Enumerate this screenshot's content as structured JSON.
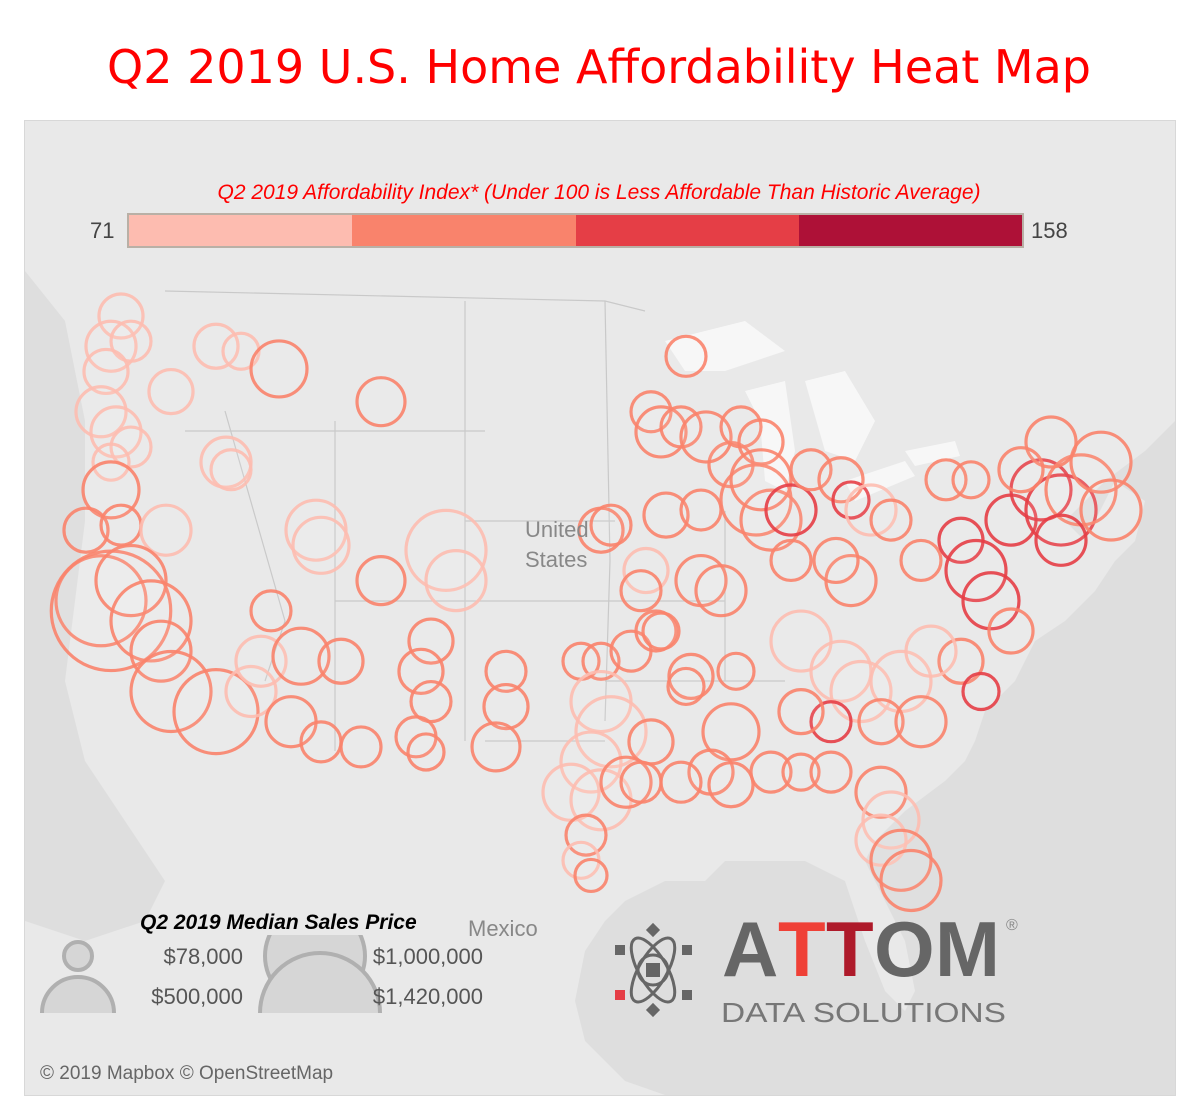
{
  "title": "Q2 2019 U.S. Home Affordability Heat Map",
  "color_legend": {
    "title": "Q2 2019 Affordability Index* (Under 100 is Less Affordable Than Historic Average)",
    "min_label": "71",
    "max_label": "158",
    "colors": [
      "#fdbcb0",
      "#f9836c",
      "#e53e46",
      "#ae1137"
    ]
  },
  "size_legend": {
    "title": "Q2 2019 Median Sales Price",
    "items": [
      {
        "label": "$78,000",
        "price": 78000
      },
      {
        "label": "$1,000,000",
        "price": 1000000
      },
      {
        "label": "$500,000",
        "price": 500000
      },
      {
        "label": "$1,420,000",
        "price": 1420000
      }
    ],
    "circle_color": "#b0b0b0"
  },
  "map_labels": {
    "country": "United States",
    "country_line1": "United",
    "country_line2": "States",
    "mexico": "Mexico"
  },
  "credit": "© 2019 Mapbox © OpenStreetMap",
  "logo": {
    "name": "ATTOM",
    "tagline": "DATA SOLUTIONS",
    "registered": "®"
  },
  "chart_data": {
    "type": "scatter",
    "marker_fields": [
      "lon",
      "lat",
      "median_price",
      "affordability_tier"
    ],
    "markers": [
      [
        -120.4,
        48.2,
        193000,
        1
      ],
      [
        -120.9,
        47.0,
        249000,
        1
      ],
      [
        -119.9,
        47.2,
        159000,
        1
      ],
      [
        -121.15,
        46.0,
        193000,
        1
      ],
      [
        -121.4,
        44.4,
        249000,
        1
      ],
      [
        -120.65,
        43.6,
        249000,
        1
      ],
      [
        -119.9,
        43.0,
        159000,
        1
      ],
      [
        -120.9,
        42.4,
        129000,
        1
      ],
      [
        -120.9,
        41.3,
        312000,
        2
      ],
      [
        -117.9,
        45.2,
        193000,
        1
      ],
      [
        -115.65,
        47.0,
        193000,
        1
      ],
      [
        -114.4,
        46.8,
        129000,
        1
      ],
      [
        -112.5,
        46.1,
        312000,
        2
      ],
      [
        -107.4,
        44.8,
        229000,
        2
      ],
      [
        -115.15,
        42.4,
        249000,
        1
      ],
      [
        -114.9,
        42.1,
        159000,
        1
      ],
      [
        -122.15,
        39.7,
        193000,
        2
      ],
      [
        -120.4,
        39.9,
        159000,
        2
      ],
      [
        -118.15,
        39.7,
        249000,
        1
      ],
      [
        -121.4,
        36.9,
        806000,
        2
      ],
      [
        -120.9,
        36.5,
        1420000,
        2
      ],
      [
        -119.9,
        37.7,
        488000,
        2
      ],
      [
        -118.9,
        36.1,
        637000,
        2
      ],
      [
        -118.4,
        34.9,
        358000,
        2
      ],
      [
        -117.9,
        33.3,
        637000,
        2
      ],
      [
        -115.65,
        32.5,
        702000,
        2
      ],
      [
        -113.9,
        33.3,
        249000,
        1
      ],
      [
        -113.4,
        34.5,
        249000,
        1
      ],
      [
        -111.4,
        34.7,
        312000,
        2
      ],
      [
        -109.4,
        34.5,
        193000,
        2
      ],
      [
        -111.9,
        32.1,
        249000,
        2
      ],
      [
        -110.4,
        31.3,
        159000,
        2
      ],
      [
        -108.4,
        31.1,
        159000,
        2
      ],
      [
        -112.9,
        36.5,
        159000,
        2
      ],
      [
        -110.65,
        39.7,
        358000,
        1
      ],
      [
        -110.4,
        39.1,
        312000,
        1
      ],
      [
        -107.4,
        37.7,
        229000,
        2
      ],
      [
        -104.15,
        38.9,
        637000,
        1
      ],
      [
        -103.65,
        37.7,
        358000,
        1
      ],
      [
        -104.9,
        35.3,
        193000,
        2
      ],
      [
        -105.4,
        34.1,
        193000,
        2
      ],
      [
        -104.9,
        32.9,
        159000,
        2
      ],
      [
        -105.65,
        31.5,
        159000,
        2
      ],
      [
        -105.15,
        30.9,
        129000,
        2
      ],
      [
        -101.15,
        34.1,
        159000,
        2
      ],
      [
        -101.15,
        32.7,
        193000,
        2
      ],
      [
        -101.65,
        31.1,
        229000,
        2
      ],
      [
        -97.4,
        34.5,
        129000,
        2
      ],
      [
        -96.4,
        34.5,
        129000,
        2
      ],
      [
        -94.9,
        34.9,
        159000,
        2
      ],
      [
        -93.65,
        35.7,
        159000,
        2
      ],
      [
        -96.4,
        32.9,
        358000,
        1
      ],
      [
        -95.9,
        31.7,
        488000,
        1
      ],
      [
        -96.9,
        30.5,
        358000,
        1
      ],
      [
        -97.9,
        29.3,
        312000,
        1
      ],
      [
        -96.4,
        29.0,
        358000,
        1
      ],
      [
        -95.15,
        29.7,
        249000,
        2
      ],
      [
        -93.9,
        31.3,
        193000,
        2
      ],
      [
        -97.15,
        27.6,
        159000,
        2
      ],
      [
        -97.4,
        26.6,
        129000,
        1
      ],
      [
        -96.9,
        26.0,
        102000,
        2
      ],
      [
        -96.4,
        39.7,
        193000,
        2
      ],
      [
        -95.9,
        39.9,
        159000,
        2
      ],
      [
        -94.15,
        38.1,
        193000,
        1
      ],
      [
        -94.4,
        37.3,
        159000,
        2
      ],
      [
        -93.15,
        40.3,
        193000,
        2
      ],
      [
        -91.4,
        40.5,
        159000,
        2
      ],
      [
        -89.9,
        42.3,
        193000,
        2
      ],
      [
        -91.4,
        37.7,
        249000,
        2
      ],
      [
        -90.4,
        37.3,
        249000,
        2
      ],
      [
        -93.4,
        35.7,
        129000,
        2
      ],
      [
        -91.9,
        33.9,
        193000,
        2
      ],
      [
        -92.15,
        33.5,
        129000,
        2
      ],
      [
        -89.9,
        31.7,
        312000,
        2
      ],
      [
        -89.65,
        34.1,
        129000,
        2
      ],
      [
        -92.15,
        46.6,
        159000,
        2
      ],
      [
        -93.9,
        44.4,
        159000,
        2
      ],
      [
        -93.4,
        43.6,
        249000,
        2
      ],
      [
        -92.4,
        43.8,
        159000,
        2
      ],
      [
        -91.15,
        43.4,
        249000,
        2
      ],
      [
        -89.4,
        43.8,
        159000,
        2
      ],
      [
        -88.4,
        43.2,
        193000,
        2
      ],
      [
        -88.65,
        40.9,
        488000,
        2
      ],
      [
        -87.9,
        40.1,
        358000,
        2
      ],
      [
        -88.4,
        41.7,
        358000,
        2
      ],
      [
        -86.9,
        40.5,
        249000,
        3
      ],
      [
        -86.9,
        38.5,
        159000,
        2
      ],
      [
        -85.9,
        42.1,
        159000,
        2
      ],
      [
        -84.4,
        41.7,
        193000,
        2
      ],
      [
        -83.9,
        40.9,
        129000,
        3
      ],
      [
        -83.9,
        37.7,
        249000,
        2
      ],
      [
        -84.65,
        38.5,
        193000,
        2
      ],
      [
        -82.9,
        40.5,
        249000,
        1
      ],
      [
        -81.9,
        40.1,
        159000,
        2
      ],
      [
        -79.15,
        41.7,
        159000,
        2
      ],
      [
        -77.9,
        41.7,
        129000,
        2
      ],
      [
        -80.4,
        38.5,
        159000,
        2
      ],
      [
        -78.4,
        39.3,
        193000,
        3
      ],
      [
        -77.65,
        38.1,
        358000,
        3
      ],
      [
        -76.9,
        36.9,
        312000,
        3
      ],
      [
        -75.9,
        35.7,
        193000,
        2
      ],
      [
        -75.9,
        40.1,
        249000,
        3
      ],
      [
        -74.4,
        41.3,
        358000,
        3
      ],
      [
        -73.4,
        40.5,
        488000,
        3
      ],
      [
        -72.4,
        41.3,
        488000,
        2
      ],
      [
        -71.4,
        42.4,
        358000,
        2
      ],
      [
        -73.9,
        43.2,
        249000,
        2
      ],
      [
        -70.9,
        40.5,
        358000,
        2
      ],
      [
        -73.4,
        39.3,
        249000,
        3
      ],
      [
        -75.4,
        42.1,
        193000,
        2
      ],
      [
        -78.4,
        34.5,
        193000,
        2
      ],
      [
        -77.4,
        33.3,
        129000,
        3
      ],
      [
        -86.4,
        35.3,
        358000,
        1
      ],
      [
        -84.4,
        34.1,
        358000,
        1
      ],
      [
        -83.4,
        33.3,
        358000,
        1
      ],
      [
        -81.4,
        33.7,
        358000,
        1
      ],
      [
        -79.9,
        34.9,
        249000,
        1
      ],
      [
        -82.4,
        32.1,
        193000,
        2
      ],
      [
        -80.4,
        32.1,
        249000,
        2
      ],
      [
        -84.9,
        32.1,
        159000,
        3
      ],
      [
        -86.4,
        32.5,
        193000,
        2
      ],
      [
        -87.9,
        30.1,
        159000,
        2
      ],
      [
        -86.4,
        30.1,
        129000,
        2
      ],
      [
        -84.9,
        30.1,
        159000,
        2
      ],
      [
        -90.9,
        30.1,
        193000,
        2
      ],
      [
        -89.9,
        29.6,
        193000,
        2
      ],
      [
        -92.4,
        29.7,
        159000,
        2
      ],
      [
        -94.4,
        29.7,
        159000,
        2
      ],
      [
        -82.4,
        29.3,
        249000,
        2
      ],
      [
        -81.9,
        28.2,
        312000,
        1
      ],
      [
        -82.4,
        27.4,
        249000,
        1
      ],
      [
        -81.4,
        26.6,
        358000,
        2
      ],
      [
        -80.9,
        25.8,
        358000,
        2
      ]
    ]
  }
}
